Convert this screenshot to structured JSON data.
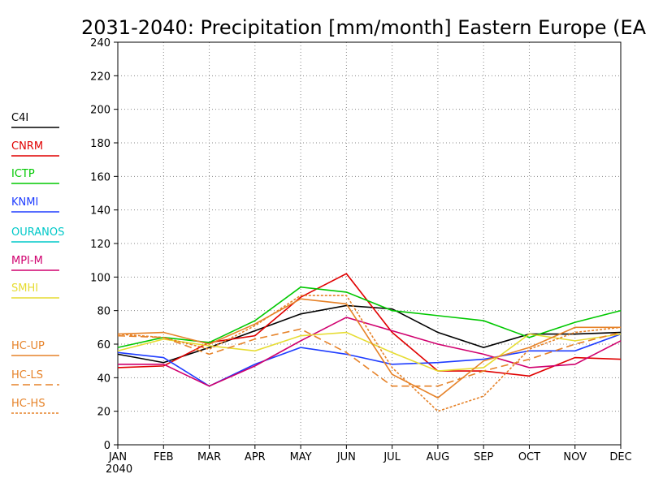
{
  "chart_data": {
    "type": "line",
    "title": "2031-2040: Precipitation [mm/month] Eastern Europe (EA",
    "x_start_label": "2040",
    "categories": [
      "JAN",
      "FEB",
      "MAR",
      "APR",
      "MAY",
      "JUN",
      "JUL",
      "AUG",
      "SEP",
      "OCT",
      "NOV",
      "DEC"
    ],
    "ylim": [
      0,
      240
    ],
    "yticks": [
      0,
      20,
      40,
      60,
      80,
      100,
      120,
      140,
      160,
      180,
      200,
      220,
      240
    ],
    "grid": true,
    "legend_position": "left",
    "series": [
      {
        "name": "C4I",
        "color": "#000000",
        "dash": "solid",
        "values": [
          54,
          49,
          58,
          68,
          78,
          83,
          81,
          67,
          58,
          66,
          66,
          67
        ]
      },
      {
        "name": "CNRM",
        "color": "#e00000",
        "dash": "solid",
        "values": [
          46,
          47,
          61,
          65,
          88,
          102,
          67,
          44,
          44,
          41,
          52,
          51
        ]
      },
      {
        "name": "ICTP",
        "color": "#00c800",
        "dash": "solid",
        "values": [
          58,
          64,
          61,
          74,
          94,
          91,
          80,
          77,
          74,
          64,
          73,
          80
        ]
      },
      {
        "name": "KNMI",
        "color": "#1e3cff",
        "dash": "solid",
        "values": [
          55,
          52,
          35,
          48,
          58,
          54,
          48,
          49,
          51,
          56,
          56,
          66
        ]
      },
      {
        "name": "OURANOS",
        "color": "#00c8c8",
        "dash": "solid",
        "values": [
          null,
          null,
          null,
          null,
          null,
          null,
          null,
          null,
          null,
          null,
          null,
          null
        ]
      },
      {
        "name": "MPI-M",
        "color": "#d0006e",
        "dash": "solid",
        "values": [
          48,
          48,
          35,
          47,
          62,
          76,
          68,
          60,
          54,
          46,
          48,
          62
        ]
      },
      {
        "name": "SMHI",
        "color": "#e6dc32",
        "dash": "solid",
        "values": [
          56,
          63,
          59,
          56,
          65,
          67,
          55,
          44,
          46,
          66,
          62,
          66
        ]
      },
      {
        "name": "HC-UP",
        "color": "#e68228",
        "dash": "solid",
        "values": [
          66,
          67,
          60,
          72,
          87,
          84,
          42,
          28,
          50,
          58,
          70,
          70
        ]
      },
      {
        "name": "HC-LS",
        "color": "#e68228",
        "dash": "dashed",
        "values": [
          65,
          64,
          54,
          63,
          69,
          55,
          35,
          35,
          44,
          51,
          60,
          67
        ]
      },
      {
        "name": "HC-HS",
        "color": "#e68228",
        "dash": "dotted",
        "values": [
          66,
          64,
          57,
          71,
          89,
          89,
          46,
          20,
          29,
          57,
          67,
          70
        ]
      }
    ]
  }
}
